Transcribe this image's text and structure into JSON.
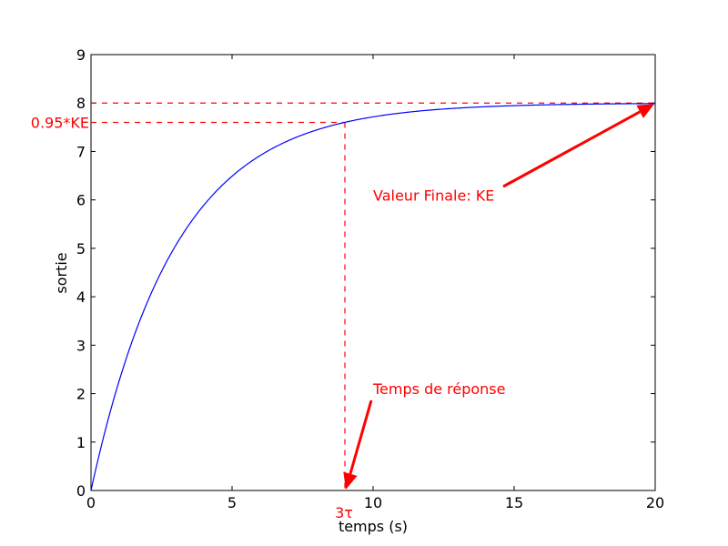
{
  "chart_data": {
    "type": "line",
    "xlabel": "temps (s)",
    "ylabel": "sortie",
    "xlim": [
      0,
      20
    ],
    "ylim": [
      0,
      9
    ],
    "xticks": [
      0,
      5,
      10,
      15,
      20
    ],
    "yticks": [
      0,
      1,
      2,
      3,
      4,
      5,
      6,
      7,
      8,
      9
    ],
    "grid": false,
    "series": [
      {
        "color": "#0000ff",
        "gain_KE": 8,
        "tau": 3,
        "x_start": 0,
        "x_end": 20
      }
    ],
    "reference_lines": {
      "final_value": 8,
      "value_95": 7.6,
      "response_time_x": 9,
      "color": "#ff0000"
    },
    "annotations": [
      {
        "text": "Valeur Finale: KE",
        "text_at": [
          10,
          6.1
        ],
        "arrow_to": [
          20,
          8
        ]
      },
      {
        "text": "Temps de réponse",
        "text_at": [
          10,
          2.1
        ],
        "arrow_to": [
          9,
          0
        ]
      }
    ],
    "extra_labels": {
      "y_095": "0.95*KE",
      "x_3tau": "3τ"
    },
    "annotation_color": "#ff0000"
  }
}
